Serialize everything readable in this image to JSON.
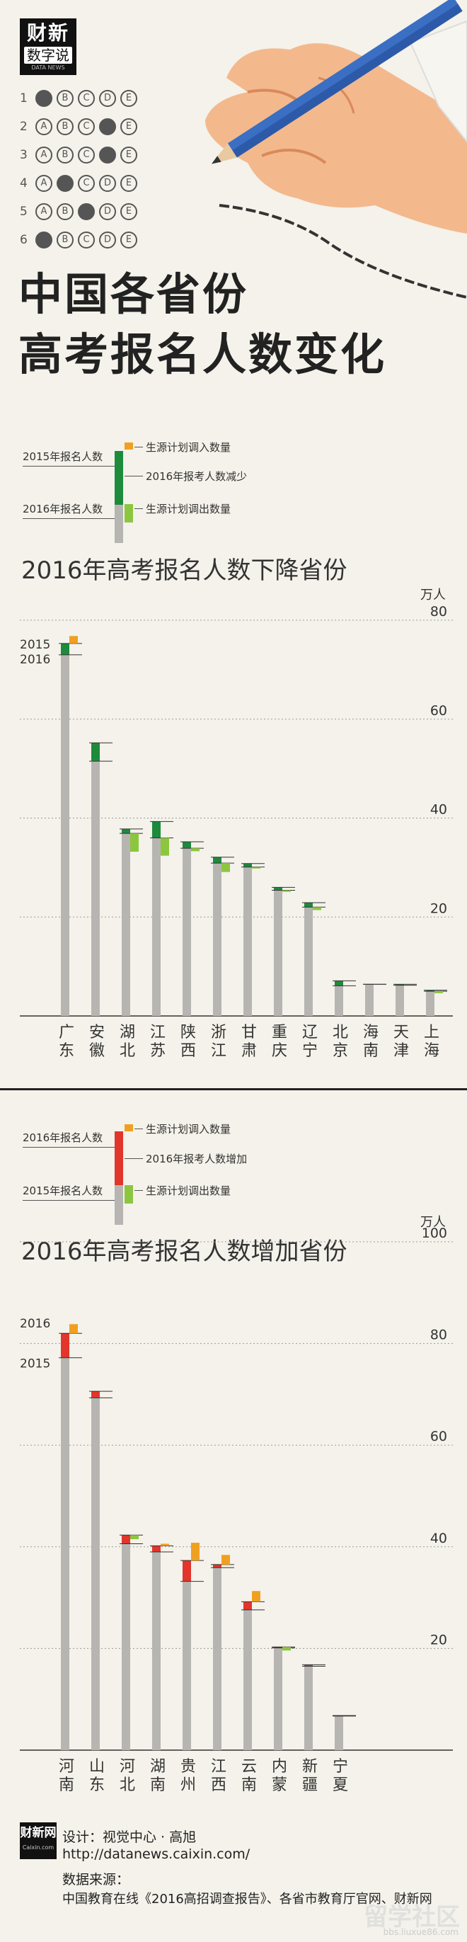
{
  "header": {
    "logo_line1": "财新",
    "logo_line2": "数字说",
    "logo_line3": "DATA NEWS",
    "answer_sheet": [
      {
        "num": "1",
        "filled": "A"
      },
      {
        "num": "2",
        "filled": "D"
      },
      {
        "num": "3",
        "filled": "D"
      },
      {
        "num": "4",
        "filled": "B"
      },
      {
        "num": "5",
        "filled": "C"
      },
      {
        "num": "6",
        "filled": "A"
      }
    ],
    "option_letters": [
      "A",
      "B",
      "C",
      "D",
      "E"
    ],
    "title_line1": "中国各省份",
    "title_line2": "高考报名人数变化"
  },
  "legend_decrease": {
    "top_label": "2015年报名人数",
    "bottom_label": "2016年报名人数",
    "inflow_label": "生源计划调入数量",
    "change_label": "2016年报考人数减少",
    "outflow_label": "生源计划调出数量"
  },
  "legend_increase": {
    "top_label": "2016年报名人数",
    "bottom_label": "2015年报名人数",
    "inflow_label": "生源计划调入数量",
    "change_label": "2016年报考人数增加",
    "outflow_label": "生源计划调出数量"
  },
  "colors": {
    "background": "#f4f2ea",
    "bar": "#b7b5b2",
    "decrease": "#1e8a3c",
    "increase": "#e2352b",
    "inflow": "#f0a020",
    "outflow": "#8cc63f"
  },
  "chart_data": [
    {
      "type": "bar",
      "title": "2016年高考报名人数下降省份",
      "unit": "万人",
      "ylim": [
        0,
        80
      ],
      "yticks": [
        "80",
        "60",
        "40",
        "20"
      ],
      "year_labels": [
        "2015",
        "2016"
      ],
      "categories": [
        "广东",
        "安徽",
        "湖北",
        "江苏",
        "陕西",
        "浙江",
        "甘肃",
        "重庆",
        "辽宁",
        "北京",
        "海南",
        "天津",
        "上海"
      ],
      "series": [
        {
          "name": "2015年报名人数",
          "values": [
            75.3,
            55.2,
            37.8,
            39.3,
            35.2,
            32.1,
            30.8,
            26.0,
            22.9,
            7.1,
            6.4,
            6.4,
            5.2
          ]
        },
        {
          "name": "2016年报名人数",
          "values": [
            73.0,
            51.5,
            36.9,
            36.0,
            33.9,
            30.9,
            30.1,
            25.4,
            22.0,
            6.1,
            6.4,
            6.2,
            5.0
          ]
        },
        {
          "name": "生源计划调入数量",
          "values": [
            1.5,
            0,
            0,
            0,
            0,
            0,
            0,
            0,
            0,
            0,
            0,
            0,
            0
          ]
        },
        {
          "name": "生源计划调出数量",
          "values": [
            0,
            0,
            3.7,
            3.6,
            0.6,
            1.8,
            0.3,
            0.3,
            0.6,
            0,
            0,
            0,
            0.4
          ]
        }
      ]
    },
    {
      "type": "bar",
      "title": "2016年高考报名人数增加省份",
      "unit": "万人",
      "ylim": [
        0,
        100
      ],
      "yticks": [
        "100",
        "80",
        "60",
        "40",
        "20"
      ],
      "year_labels": [
        "2016",
        "2015"
      ],
      "categories": [
        "河南",
        "山东",
        "河北",
        "湖南",
        "贵州",
        "江西",
        "云南",
        "内蒙古",
        "新疆",
        "宁夏"
      ],
      "series": [
        {
          "name": "2016年报名人数",
          "values": [
            82.0,
            70.6,
            42.3,
            40.2,
            37.3,
            36.5,
            29.2,
            20.3,
            16.8,
            6.8
          ]
        },
        {
          "name": "2015年报名人数",
          "values": [
            77.2,
            69.3,
            40.6,
            39.0,
            33.2,
            35.9,
            27.6,
            20.1,
            16.5,
            6.7
          ]
        },
        {
          "name": "生源计划调入数量",
          "values": [
            1.8,
            0,
            0,
            0.4,
            3.5,
            1.9,
            2.1,
            0,
            0,
            0
          ]
        },
        {
          "name": "生源计划调出数量",
          "values": [
            0,
            0,
            0.8,
            0,
            0,
            0,
            0,
            0.7,
            0,
            0
          ]
        }
      ]
    }
  ],
  "footer": {
    "logo_a": "财新网",
    "logo_b": "Caixin.com",
    "design": "设计：视觉中心 · 高旭",
    "url": "http://datanews.caixin.com/",
    "source_label": "数据来源：",
    "source": "中国教育在线《2016高招调查报告》、各省市教育厅官网、财新网",
    "watermark": "留学社区",
    "watermark_url": "bbs.liuxue86.com"
  }
}
